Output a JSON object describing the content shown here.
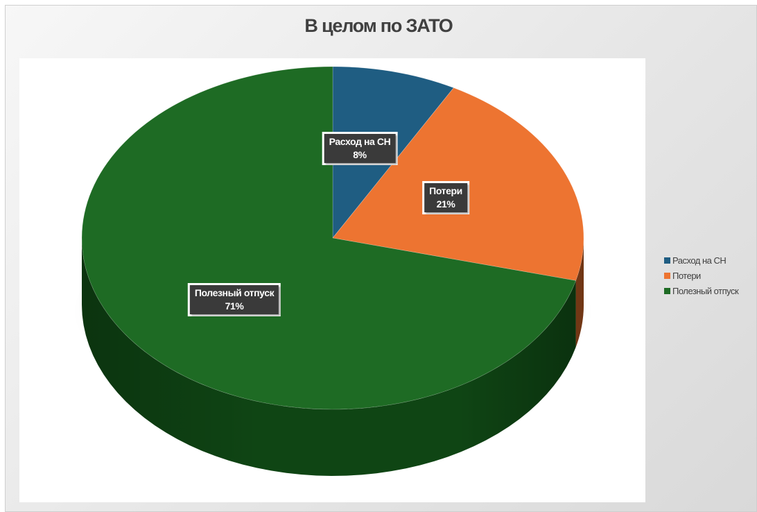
{
  "chart_data": {
    "type": "pie",
    "title": "В целом по ЗАТО",
    "categories": [
      "Расход на СН",
      "Потери",
      "Полезный отпуск"
    ],
    "values": [
      8,
      21,
      71
    ],
    "labels": [
      "8%",
      "21%",
      "71%"
    ],
    "colors": [
      "#1f5d82",
      "#ed7431",
      "#1e6b24"
    ],
    "side_colors": [
      "#123d57",
      "#a04d1d",
      "#0f4514"
    ],
    "legend_position": "right",
    "style": "3d"
  },
  "legend": [
    {
      "label": "Расход на СН"
    },
    {
      "label": "Потери"
    },
    {
      "label": "Полезный отпуск"
    }
  ],
  "data_labels": [
    {
      "name": "Расход на СН",
      "value": "8%"
    },
    {
      "name": "Потери",
      "value": "21%"
    },
    {
      "name": "Полезный отпуск",
      "value": "71%"
    }
  ]
}
